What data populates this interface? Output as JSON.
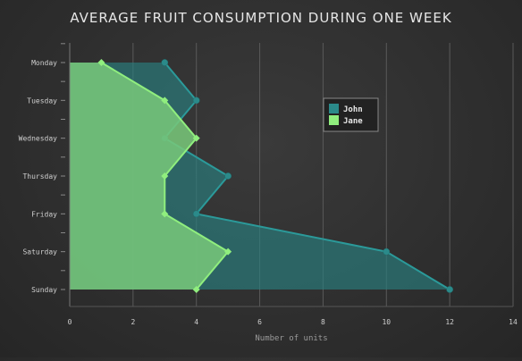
{
  "chart_data": {
    "type": "area",
    "orientation": "horizontal",
    "title": "AVERAGE FRUIT CONSUMPTION DURING ONE WEEK",
    "xlabel": "Number of units",
    "ylabel": "",
    "xlim": [
      0,
      14
    ],
    "xticks": [
      "0",
      "2",
      "4",
      "6",
      "8",
      "10",
      "12",
      "14"
    ],
    "categories": [
      "Monday",
      "Tuesday",
      "Wednesday",
      "Thursday",
      "Friday",
      "Saturday",
      "Sunday"
    ],
    "series": [
      {
        "name": "John",
        "color": "#2b8a8a",
        "values": [
          3,
          4,
          3,
          5,
          4,
          10,
          12
        ]
      },
      {
        "name": "Jane",
        "color": "#90ee7e",
        "values": [
          1,
          3,
          4,
          3,
          3,
          5,
          4
        ]
      }
    ],
    "grid": "vertical",
    "legend_position": "top-right"
  }
}
